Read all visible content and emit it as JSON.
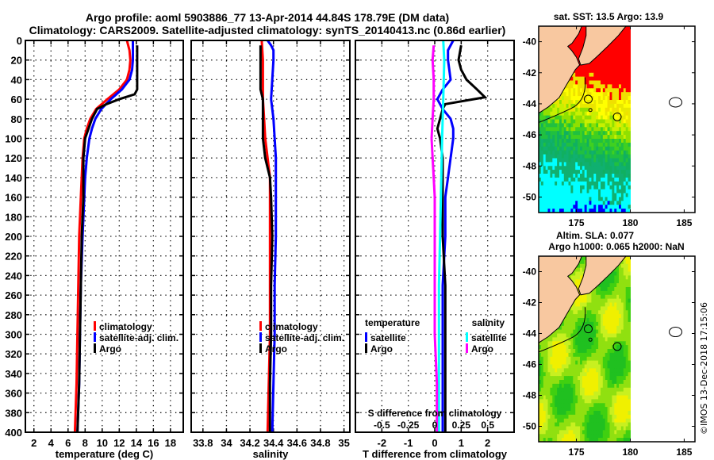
{
  "title": {
    "line1": "Argo profile: aoml 5903886_77 13-Apr-2014 44.84S 178.79E (DM data)",
    "line2": "Climatology: CARS2009. Satellite-adjusted climatology: synTS_20140413.nc (0.86d earlier)"
  },
  "watermark": "©IMOS 13-Dec-2018 17:15:06",
  "colors": {
    "climatology": "#ff0000",
    "satellite": "#0000ff",
    "argo": "#000000",
    "sal_satellite": "#00ffff",
    "sal_argo": "#ff00ff",
    "land": "#f8c8a0"
  },
  "chart_data": [
    {
      "type": "line",
      "name": "temperature-profile",
      "xlabel": "temperature (deg C)",
      "ylabel": "depth",
      "xlim": [
        1,
        19.5
      ],
      "ylim": [
        400,
        0
      ],
      "xticks": [
        2,
        4,
        6,
        8,
        10,
        12,
        14,
        16,
        18
      ],
      "yticks": [
        0,
        20,
        40,
        60,
        80,
        100,
        120,
        140,
        160,
        180,
        200,
        220,
        240,
        260,
        280,
        300,
        320,
        340,
        360,
        380,
        400
      ],
      "grid": true,
      "legend": {
        "position": "right-lower",
        "entries": [
          "climatology",
          "satellite-adj. clim.",
          "Argo"
        ]
      },
      "series": [
        {
          "name": "climatology",
          "color_key": "climatology",
          "depth": [
            0,
            10,
            20,
            30,
            40,
            50,
            60,
            70,
            80,
            90,
            100,
            120,
            140,
            160,
            200,
            250,
            300,
            350,
            400
          ],
          "values": [
            12.9,
            13.2,
            13.3,
            13.2,
            12.9,
            12.0,
            10.6,
            9.3,
            8.6,
            8.2,
            7.9,
            7.7,
            7.6,
            7.5,
            7.3,
            7.2,
            7.1,
            7.0,
            6.8
          ]
        },
        {
          "name": "satellite-adj. clim.",
          "color_key": "satellite",
          "depth": [
            0,
            10,
            20,
            30,
            40,
            50,
            60,
            70,
            80,
            90,
            100,
            120,
            140,
            160,
            200,
            250,
            300,
            350,
            400
          ],
          "values": [
            13.6,
            13.6,
            13.6,
            13.5,
            13.2,
            12.3,
            11.0,
            9.9,
            9.2,
            8.8,
            8.5,
            8.2,
            8.0,
            7.9,
            7.7,
            7.5,
            7.4,
            7.3,
            7.1
          ]
        },
        {
          "name": "Argo",
          "color_key": "argo",
          "depth": [
            5,
            20,
            40,
            50,
            55,
            60,
            65,
            70,
            80,
            90,
            100,
            120,
            140,
            160,
            200,
            250,
            300,
            350,
            400
          ],
          "values": [
            14.1,
            14.1,
            14.1,
            14.1,
            13.8,
            12.0,
            10.5,
            9.4,
            8.8,
            8.4,
            8.0,
            7.8,
            7.8,
            7.8,
            7.6,
            7.5,
            7.4,
            7.3,
            7.1
          ]
        }
      ]
    },
    {
      "type": "line",
      "name": "salinity-profile",
      "xlabel": "salinity",
      "xlim": [
        33.7,
        35.05
      ],
      "ylim": [
        400,
        0
      ],
      "xticks": [
        33.8,
        34,
        34.2,
        34.4,
        34.6,
        34.8,
        35
      ],
      "xticklabels": [
        "33.8",
        "34",
        "34.2",
        "34.4",
        "34.6",
        "34.8",
        "35"
      ],
      "grid": true,
      "legend": {
        "position": "right-lower",
        "entries": [
          "climatology",
          "satellite-adj. clim.",
          "Argo"
        ]
      },
      "series": [
        {
          "name": "climatology",
          "color_key": "climatology",
          "depth": [
            0,
            20,
            40,
            60,
            80,
            100,
            120,
            140,
            160,
            200,
            250,
            300,
            350,
            400
          ],
          "values": [
            34.3,
            34.31,
            34.31,
            34.31,
            34.32,
            34.33,
            34.35,
            34.37,
            34.37,
            34.37,
            34.37,
            34.37,
            34.36,
            34.35
          ]
        },
        {
          "name": "satellite-adj. clim.",
          "color_key": "satellite",
          "depth": [
            0,
            5,
            10,
            20,
            40,
            60,
            80,
            100,
            120,
            140,
            160,
            200,
            250,
            300,
            350,
            400
          ],
          "values": [
            34.35,
            34.38,
            34.4,
            34.4,
            34.39,
            34.38,
            34.4,
            34.41,
            34.42,
            34.42,
            34.42,
            34.42,
            34.41,
            34.41,
            34.4,
            34.39
          ]
        },
        {
          "name": "Argo",
          "color_key": "argo",
          "depth": [
            5,
            20,
            40,
            50,
            60,
            80,
            100,
            120,
            140,
            160,
            200,
            250,
            300,
            350,
            400
          ],
          "values": [
            34.29,
            34.29,
            34.29,
            34.29,
            34.31,
            34.31,
            34.31,
            34.33,
            34.37,
            34.38,
            34.39,
            34.38,
            34.38,
            34.37,
            34.37
          ]
        }
      ]
    },
    {
      "type": "line",
      "name": "difference-profile",
      "xlabel": "T difference from climatology",
      "xlim": [
        -3,
        3
      ],
      "ylim": [
        400,
        0
      ],
      "xticks": [
        -2,
        -1,
        0,
        1,
        2
      ],
      "secondary_xlabel": "S difference from climatology",
      "secondary_xticks": [
        -0.5,
        -0.25,
        0,
        0.25,
        0.5
      ],
      "secondary_xlim": [
        -0.75,
        0.75
      ],
      "grid": true,
      "legend": {
        "temperature": {
          "heading": "temperature",
          "entries": [
            "satellite",
            "Argo"
          ]
        },
        "salinity": {
          "heading": "salinity",
          "entries": [
            "satellite",
            "Argo"
          ]
        }
      },
      "series": [
        {
          "name": "temperature satellite",
          "color_key": "satellite",
          "axis": "T",
          "depth": [
            0,
            10,
            20,
            40,
            50,
            60,
            70,
            80,
            90,
            100,
            120,
            140,
            160,
            200,
            250,
            300,
            350,
            400
          ],
          "values": [
            0.7,
            0.5,
            0.5,
            0.6,
            0.3,
            0.1,
            0.3,
            0.6,
            0.7,
            0.7,
            0.6,
            0.5,
            0.4,
            0.4,
            0.3,
            0.3,
            0.3,
            0.3
          ]
        },
        {
          "name": "temperature Argo",
          "color_key": "argo",
          "axis": "T",
          "depth": [
            5,
            20,
            30,
            40,
            50,
            58,
            65,
            70,
            80,
            90,
            100,
            120,
            140,
            160,
            200,
            250,
            300,
            350,
            400
          ],
          "values": [
            1.0,
            0.9,
            1.0,
            1.2,
            1.6,
            1.9,
            0.4,
            0.3,
            0.2,
            0.1,
            0.2,
            0.3,
            0.3,
            0.3,
            0.3,
            0.4,
            0.4,
            0.4,
            0.4
          ]
        },
        {
          "name": "salinity satellite",
          "color_key": "sal_satellite",
          "axis": "S",
          "depth": [
            0,
            20,
            60,
            100,
            150,
            200,
            250,
            300,
            350,
            400
          ],
          "values": [
            0.08,
            0.09,
            0.08,
            0.07,
            0.06,
            0.05,
            0.04,
            0.04,
            0.04,
            0.04
          ]
        },
        {
          "name": "salinity Argo",
          "color_key": "sal_argo",
          "axis": "S",
          "depth": [
            5,
            20,
            40,
            60,
            80,
            100,
            120,
            140,
            160,
            200,
            250,
            300,
            350,
            400
          ],
          "values": [
            -0.01,
            -0.02,
            -0.01,
            -0.01,
            -0.02,
            -0.03,
            -0.02,
            -0.01,
            0.0,
            0.0,
            0.0,
            0.0,
            0.02,
            0.02
          ]
        }
      ]
    },
    {
      "type": "heatmap",
      "name": "sst-map",
      "title": "sat. SST: 13.5 Argo: 13.9",
      "xticks": [
        175,
        180,
        185
      ],
      "yticks": [
        -40,
        -42,
        -44,
        -46,
        -48,
        -50
      ],
      "xlim": [
        171.5,
        186
      ],
      "ylim": [
        -51,
        -39
      ],
      "argo_position": {
        "lon": 178.79,
        "lat": -44.84
      }
    },
    {
      "type": "heatmap",
      "name": "sla-map",
      "title": "Altim. SLA: 0.077",
      "subtitle": "Argo h1000: 0.065 h2000: NaN",
      "xticks": [
        175,
        180,
        185
      ],
      "yticks": [
        -40,
        -42,
        -44,
        -46,
        -48,
        -50
      ],
      "xlim": [
        171.5,
        186
      ],
      "ylim": [
        -51,
        -39
      ],
      "argo_position": {
        "lon": 178.79,
        "lat": -44.84
      }
    }
  ]
}
